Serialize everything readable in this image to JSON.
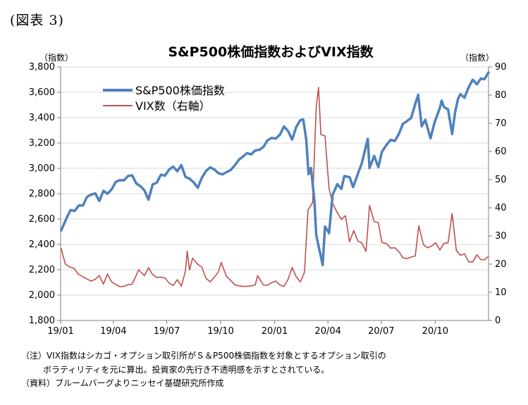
{
  "figure_label": "(図表 3)",
  "chart_data": {
    "type": "line",
    "title": "S&P500株価指数およびVIX指数",
    "y_left_unit": "（指数）",
    "y_right_unit": "（指数）",
    "y_left_lim": [
      1800,
      3800
    ],
    "y_left_ticks": [
      "1,800",
      "2,000",
      "2,200",
      "2,400",
      "2,600",
      "2,800",
      "3,000",
      "3,200",
      "3,400",
      "3,600",
      "3,800"
    ],
    "y_right_lim": [
      0,
      90
    ],
    "y_right_ticks": [
      "0",
      "10",
      "20",
      "30",
      "40",
      "50",
      "60",
      "70",
      "80",
      "90"
    ],
    "x_ticks": [
      {
        "date": "2019-01-01",
        "label": "19/01"
      },
      {
        "date": "2019-04-01",
        "label": "19/04"
      },
      {
        "date": "2019-07-01",
        "label": "19/07"
      },
      {
        "date": "2019-10-01",
        "label": "19/10"
      },
      {
        "date": "2020-01-01",
        "label": "20/01"
      },
      {
        "date": "2020-04-01",
        "label": "20/04"
      },
      {
        "date": "2020-07-01",
        "label": "20/07"
      },
      {
        "date": "2020-10-01",
        "label": "20/10"
      }
    ],
    "x_range": [
      "2019-01-01",
      "2020-12-31"
    ],
    "legend_position": "top-left",
    "series": [
      {
        "name": "S&P500株価指数",
        "axis": "left",
        "color": "#4f81bd",
        "points": [
          [
            "2019-01-02",
            2510
          ],
          [
            "2019-01-10",
            2596
          ],
          [
            "2019-01-18",
            2671
          ],
          [
            "2019-01-25",
            2664
          ],
          [
            "2019-02-01",
            2707
          ],
          [
            "2019-02-08",
            2707
          ],
          [
            "2019-02-15",
            2775
          ],
          [
            "2019-02-22",
            2793
          ],
          [
            "2019-03-01",
            2803
          ],
          [
            "2019-03-08",
            2743
          ],
          [
            "2019-03-15",
            2822
          ],
          [
            "2019-03-22",
            2800
          ],
          [
            "2019-03-29",
            2834
          ],
          [
            "2019-04-05",
            2893
          ],
          [
            "2019-04-12",
            2907
          ],
          [
            "2019-04-19",
            2905
          ],
          [
            "2019-04-26",
            2940
          ],
          [
            "2019-05-03",
            2945
          ],
          [
            "2019-05-10",
            2881
          ],
          [
            "2019-05-17",
            2860
          ],
          [
            "2019-05-24",
            2826
          ],
          [
            "2019-05-31",
            2752
          ],
          [
            "2019-06-07",
            2873
          ],
          [
            "2019-06-14",
            2887
          ],
          [
            "2019-06-21",
            2950
          ],
          [
            "2019-06-28",
            2942
          ],
          [
            "2019-07-05",
            2990
          ],
          [
            "2019-07-12",
            3014
          ],
          [
            "2019-07-19",
            2977
          ],
          [
            "2019-07-26",
            3025
          ],
          [
            "2019-08-02",
            2932
          ],
          [
            "2019-08-09",
            2919
          ],
          [
            "2019-08-16",
            2889
          ],
          [
            "2019-08-23",
            2847
          ],
          [
            "2019-08-30",
            2926
          ],
          [
            "2019-09-06",
            2979
          ],
          [
            "2019-09-13",
            3007
          ],
          [
            "2019-09-20",
            2992
          ],
          [
            "2019-09-27",
            2962
          ],
          [
            "2019-10-04",
            2952
          ],
          [
            "2019-10-11",
            2970
          ],
          [
            "2019-10-18",
            2986
          ],
          [
            "2019-10-25",
            3023
          ],
          [
            "2019-11-01",
            3067
          ],
          [
            "2019-11-08",
            3093
          ],
          [
            "2019-11-15",
            3120
          ],
          [
            "2019-11-22",
            3110
          ],
          [
            "2019-11-29",
            3141
          ],
          [
            "2019-12-06",
            3146
          ],
          [
            "2019-12-13",
            3169
          ],
          [
            "2019-12-20",
            3221
          ],
          [
            "2019-12-27",
            3240
          ],
          [
            "2020-01-03",
            3235
          ],
          [
            "2020-01-10",
            3265
          ],
          [
            "2020-01-17",
            3330
          ],
          [
            "2020-01-24",
            3295
          ],
          [
            "2020-01-31",
            3226
          ],
          [
            "2020-02-07",
            3328
          ],
          [
            "2020-02-14",
            3380
          ],
          [
            "2020-02-19",
            3386
          ],
          [
            "2020-02-24",
            3226
          ],
          [
            "2020-02-28",
            2954
          ],
          [
            "2020-03-03",
            3003
          ],
          [
            "2020-03-09",
            2746
          ],
          [
            "2020-03-12",
            2480
          ],
          [
            "2020-03-16",
            2386
          ],
          [
            "2020-03-20",
            2305
          ],
          [
            "2020-03-23",
            2237
          ],
          [
            "2020-03-27",
            2541
          ],
          [
            "2020-04-03",
            2489
          ],
          [
            "2020-04-09",
            2790
          ],
          [
            "2020-04-17",
            2875
          ],
          [
            "2020-04-24",
            2837
          ],
          [
            "2020-04-29",
            2939
          ],
          [
            "2020-05-08",
            2930
          ],
          [
            "2020-05-14",
            2852
          ],
          [
            "2020-05-22",
            2955
          ],
          [
            "2020-05-29",
            3044
          ],
          [
            "2020-06-08",
            3232
          ],
          [
            "2020-06-11",
            3002
          ],
          [
            "2020-06-19",
            3098
          ],
          [
            "2020-06-26",
            3009
          ],
          [
            "2020-07-02",
            3130
          ],
          [
            "2020-07-10",
            3185
          ],
          [
            "2020-07-17",
            3225
          ],
          [
            "2020-07-24",
            3216
          ],
          [
            "2020-07-31",
            3271
          ],
          [
            "2020-08-07",
            3351
          ],
          [
            "2020-08-14",
            3373
          ],
          [
            "2020-08-21",
            3397
          ],
          [
            "2020-08-28",
            3508
          ],
          [
            "2020-09-02",
            3580
          ],
          [
            "2020-09-08",
            3331
          ],
          [
            "2020-09-14",
            3383
          ],
          [
            "2020-09-23",
            3237
          ],
          [
            "2020-09-30",
            3363
          ],
          [
            "2020-10-09",
            3477
          ],
          [
            "2020-10-12",
            3534
          ],
          [
            "2020-10-16",
            3483
          ],
          [
            "2020-10-23",
            3465
          ],
          [
            "2020-10-30",
            3270
          ],
          [
            "2020-11-04",
            3443
          ],
          [
            "2020-11-09",
            3550
          ],
          [
            "2020-11-13",
            3585
          ],
          [
            "2020-11-20",
            3557
          ],
          [
            "2020-11-27",
            3638
          ],
          [
            "2020-12-04",
            3699
          ],
          [
            "2020-12-11",
            3663
          ],
          [
            "2020-12-18",
            3709
          ],
          [
            "2020-12-24",
            3703
          ],
          [
            "2020-12-31",
            3756
          ]
        ]
      },
      {
        "name": "VIX数（右軸）",
        "axis": "right",
        "color": "#c0504d",
        "points": [
          [
            "2019-01-02",
            25.5
          ],
          [
            "2019-01-09",
            20.0
          ],
          [
            "2019-01-16",
            19.0
          ],
          [
            "2019-01-24",
            18.5
          ],
          [
            "2019-01-31",
            16.5
          ],
          [
            "2019-02-08",
            15.5
          ],
          [
            "2019-02-15",
            14.7
          ],
          [
            "2019-02-22",
            14.0
          ],
          [
            "2019-03-01",
            14.6
          ],
          [
            "2019-03-08",
            16.0
          ],
          [
            "2019-03-15",
            12.9
          ],
          [
            "2019-03-22",
            16.5
          ],
          [
            "2019-03-29",
            13.7
          ],
          [
            "2019-04-05",
            12.8
          ],
          [
            "2019-04-12",
            12.0
          ],
          [
            "2019-04-19",
            12.1
          ],
          [
            "2019-04-26",
            12.7
          ],
          [
            "2019-05-03",
            12.9
          ],
          [
            "2019-05-10",
            16.0
          ],
          [
            "2019-05-14",
            18.0
          ],
          [
            "2019-05-24",
            15.9
          ],
          [
            "2019-05-31",
            18.7
          ],
          [
            "2019-06-07",
            16.3
          ],
          [
            "2019-06-14",
            15.3
          ],
          [
            "2019-06-21",
            15.4
          ],
          [
            "2019-06-28",
            15.1
          ],
          [
            "2019-07-05",
            13.3
          ],
          [
            "2019-07-12",
            12.4
          ],
          [
            "2019-07-19",
            14.5
          ],
          [
            "2019-07-26",
            12.2
          ],
          [
            "2019-08-02",
            17.6
          ],
          [
            "2019-08-05",
            24.6
          ],
          [
            "2019-08-09",
            17.9
          ],
          [
            "2019-08-14",
            22.1
          ],
          [
            "2019-08-23",
            19.9
          ],
          [
            "2019-08-30",
            18.9
          ],
          [
            "2019-09-06",
            15.0
          ],
          [
            "2019-09-13",
            13.7
          ],
          [
            "2019-09-20",
            15.3
          ],
          [
            "2019-09-27",
            17.2
          ],
          [
            "2019-10-02",
            20.6
          ],
          [
            "2019-10-11",
            15.6
          ],
          [
            "2019-10-18",
            14.3
          ],
          [
            "2019-10-25",
            12.7
          ],
          [
            "2019-11-01",
            12.3
          ],
          [
            "2019-11-08",
            12.1
          ],
          [
            "2019-11-15",
            12.1
          ],
          [
            "2019-11-22",
            12.3
          ],
          [
            "2019-11-29",
            12.6
          ],
          [
            "2019-12-03",
            15.9
          ],
          [
            "2019-12-13",
            12.6
          ],
          [
            "2019-12-20",
            12.5
          ],
          [
            "2019-12-27",
            13.4
          ],
          [
            "2020-01-03",
            14.0
          ],
          [
            "2020-01-10",
            12.6
          ],
          [
            "2020-01-17",
            12.1
          ],
          [
            "2020-01-24",
            14.6
          ],
          [
            "2020-01-31",
            18.8
          ],
          [
            "2020-02-07",
            15.5
          ],
          [
            "2020-02-14",
            13.7
          ],
          [
            "2020-02-21",
            17.1
          ],
          [
            "2020-02-27",
            39.2
          ],
          [
            "2020-03-06",
            41.9
          ],
          [
            "2020-03-12",
            75.5
          ],
          [
            "2020-03-16",
            82.7
          ],
          [
            "2020-03-20",
            66.0
          ],
          [
            "2020-03-27",
            65.5
          ],
          [
            "2020-04-03",
            46.8
          ],
          [
            "2020-04-09",
            41.7
          ],
          [
            "2020-04-17",
            38.2
          ],
          [
            "2020-04-24",
            35.9
          ],
          [
            "2020-05-01",
            37.2
          ],
          [
            "2020-05-08",
            27.9
          ],
          [
            "2020-05-15",
            31.9
          ],
          [
            "2020-05-22",
            28.2
          ],
          [
            "2020-05-29",
            27.5
          ],
          [
            "2020-06-05",
            24.5
          ],
          [
            "2020-06-11",
            40.8
          ],
          [
            "2020-06-19",
            35.1
          ],
          [
            "2020-06-26",
            34.7
          ],
          [
            "2020-07-02",
            27.7
          ],
          [
            "2020-07-10",
            27.3
          ],
          [
            "2020-07-17",
            25.7
          ],
          [
            "2020-07-24",
            25.8
          ],
          [
            "2020-07-31",
            24.5
          ],
          [
            "2020-08-07",
            22.2
          ],
          [
            "2020-08-14",
            22.0
          ],
          [
            "2020-08-21",
            22.5
          ],
          [
            "2020-08-28",
            22.9
          ],
          [
            "2020-09-03",
            33.6
          ],
          [
            "2020-09-11",
            26.9
          ],
          [
            "2020-09-18",
            25.8
          ],
          [
            "2020-09-25",
            26.4
          ],
          [
            "2020-10-02",
            27.6
          ],
          [
            "2020-10-09",
            25.0
          ],
          [
            "2020-10-16",
            27.4
          ],
          [
            "2020-10-23",
            27.6
          ],
          [
            "2020-10-30",
            38.0
          ],
          [
            "2020-11-06",
            24.9
          ],
          [
            "2020-11-13",
            23.1
          ],
          [
            "2020-11-20",
            23.7
          ],
          [
            "2020-11-27",
            20.8
          ],
          [
            "2020-12-04",
            20.8
          ],
          [
            "2020-12-11",
            23.3
          ],
          [
            "2020-12-18",
            21.6
          ],
          [
            "2020-12-24",
            21.5
          ],
          [
            "2020-12-31",
            22.8
          ]
        ]
      }
    ]
  },
  "notes": [
    "（注）VIX指数はシカゴ・オプション取引所がＳ＆P500株価指数を対象とするオプション取引の",
    "ボラティリティを元に算出。投資家の先行き不透明感を示すとされている。",
    "（資料）ブルームバーグよりニッセイ基礎研究所作成"
  ]
}
